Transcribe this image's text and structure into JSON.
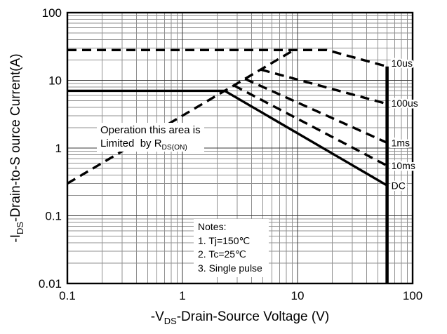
{
  "chart_data": {
    "type": "line",
    "title": "",
    "xlabel": {
      "pre": "-V",
      "sub": "DS",
      "post": "-Drain-Source Voltage (V)"
    },
    "ylabel": {
      "pre": "-I",
      "sub": "DS",
      "post": "-Drain-to-S ource Current(A)"
    },
    "x_axis": {
      "scale": "log",
      "min": 0.1,
      "max": 100,
      "tick_values": [
        0.1,
        1,
        10,
        100
      ],
      "tick_labels": [
        "0.1",
        "1",
        "10",
        "100"
      ]
    },
    "y_axis": {
      "scale": "log",
      "min": 0.01,
      "max": 100,
      "tick_values": [
        100,
        10,
        1,
        0.1,
        0.01
      ],
      "tick_labels": [
        "100",
        "10",
        "1",
        "0.1",
        "0.01"
      ]
    },
    "grid": {
      "minor": true,
      "major": true
    },
    "vds_max": 60,
    "colors": {
      "line": "#000000",
      "grid_minor": "#909090",
      "grid_major": "#3a3a3a",
      "background": "#ffffff"
    },
    "series": [
      {
        "name": "pulse-10us",
        "label": "10us",
        "style": "dashed",
        "points": [
          [
            0.1,
            28
          ],
          [
            18,
            28
          ],
          [
            60,
            16
          ]
        ],
        "label_y": 18
      },
      {
        "name": "pulse-100us",
        "label": "100us",
        "style": "dashed",
        "points": [
          [
            4.8,
            14.4
          ],
          [
            60,
            4.5
          ]
        ],
        "label_y": 4.6
      },
      {
        "name": "pulse-1ms",
        "label": "1ms",
        "style": "dashed",
        "points": [
          [
            3.5,
            10.5
          ],
          [
            60,
            1.2
          ]
        ],
        "label_y": 1.2
      },
      {
        "name": "pulse-10ms",
        "label": "10ms",
        "style": "dashed",
        "points": [
          [
            2.8,
            8.4
          ],
          [
            60,
            0.55
          ]
        ],
        "label_y": 0.55
      },
      {
        "name": "rdson-limit",
        "label": "",
        "style": "dashed",
        "points": [
          [
            0.1,
            0.3
          ],
          [
            9.3,
            28
          ]
        ]
      },
      {
        "name": "dc",
        "label": "DC",
        "style": "solid",
        "points": [
          [
            0.1,
            7
          ],
          [
            2.33,
            7
          ],
          [
            60,
            0.28
          ]
        ],
        "label_y": 0.28
      },
      {
        "name": "vds-max-boundary",
        "label": "",
        "style": "solid",
        "width": 4.5,
        "points": [
          [
            60,
            0.01
          ],
          [
            60,
            16
          ]
        ]
      }
    ],
    "annotations": {
      "operation_note": {
        "line1": "Operation this area is",
        "line2_pre": "Limited  by R",
        "line2_sub": "DS(ON)"
      },
      "notes": {
        "title": "Notes:",
        "items": [
          "1. Tj=150℃",
          "2. Tc=25℃",
          "3. Single pulse"
        ]
      }
    }
  }
}
